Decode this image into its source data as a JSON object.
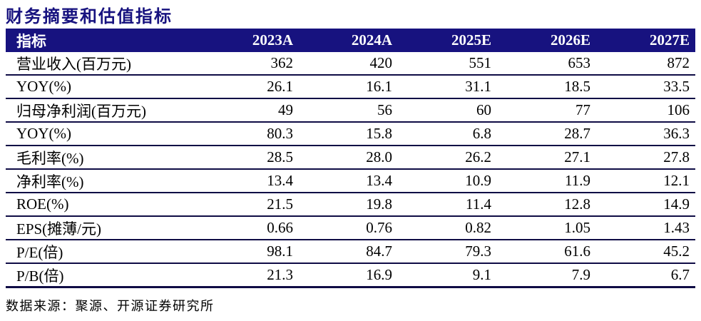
{
  "title": "财务摘要和估值指标",
  "colors": {
    "header_background": "#17127f",
    "title_text": "#17127f",
    "row_rule": "#0f0c45",
    "header_text": "#ffffff",
    "body_text": "#000000"
  },
  "table": {
    "header": [
      "指标",
      "2023A",
      "2024A",
      "2025E",
      "2026E",
      "2027E"
    ],
    "rows": [
      {
        "label": "营业收入(百万元)",
        "values": [
          "362",
          "420",
          "551",
          "653",
          "872"
        ]
      },
      {
        "label": "YOY(%)",
        "values": [
          "26.1",
          "16.1",
          "31.1",
          "18.5",
          "33.5"
        ]
      },
      {
        "label": "归母净利润(百万元)",
        "values": [
          "49",
          "56",
          "60",
          "77",
          "106"
        ]
      },
      {
        "label": "YOY(%)",
        "values": [
          "80.3",
          "15.8",
          "6.8",
          "28.7",
          "36.3"
        ]
      },
      {
        "label": "毛利率(%)",
        "values": [
          "28.5",
          "28.0",
          "26.2",
          "27.1",
          "27.8"
        ]
      },
      {
        "label": "净利率(%)",
        "values": [
          "13.4",
          "13.4",
          "10.9",
          "11.9",
          "12.1"
        ]
      },
      {
        "label": "ROE(%)",
        "values": [
          "21.5",
          "19.8",
          "11.4",
          "12.8",
          "14.9"
        ]
      },
      {
        "label": "EPS(摊薄/元)",
        "values": [
          "0.66",
          "0.76",
          "0.82",
          "1.05",
          "1.43"
        ]
      },
      {
        "label": "P/E(倍)",
        "values": [
          "98.1",
          "84.7",
          "79.3",
          "61.6",
          "45.2"
        ]
      },
      {
        "label": "P/B(倍)",
        "values": [
          "21.3",
          "16.9",
          "9.1",
          "7.9",
          "6.7"
        ]
      }
    ]
  },
  "footer": {
    "source": "数据来源：聚源、开源证券研究所"
  }
}
